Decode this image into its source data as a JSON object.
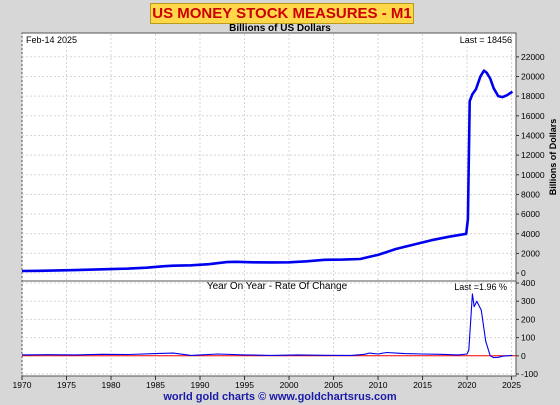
{
  "header": {
    "title": "US MONEY STOCK MEASURES - M1",
    "subtitle": "Billions of US Dollars"
  },
  "footer": {
    "credit": "world gold charts © www.goldchartsrus.com"
  },
  "chart_data": [
    {
      "type": "line",
      "panel": "main",
      "date_label": "Feb-14  2025",
      "last_label": "Last = 18456",
      "ylabel": "Billions of Dollars",
      "ylim": [
        -500,
        23000
      ],
      "yticks": [
        0,
        2000,
        4000,
        6000,
        8000,
        10000,
        12000,
        14000,
        16000,
        18000,
        20000,
        22000
      ],
      "grid": true,
      "color": "#0000ee",
      "x": [
        1970,
        1972,
        1974,
        1976,
        1978,
        1980,
        1982,
        1984,
        1986,
        1987,
        1989,
        1991,
        1993,
        1994,
        1996,
        1998,
        2000,
        2002,
        2004,
        2006,
        2008,
        2009,
        2010,
        2011,
        2012,
        2014,
        2016,
        2018,
        2019,
        2019.9,
        2020.1,
        2020.3,
        2020.6,
        2021,
        2021.5,
        2021.9,
        2022.2,
        2022.6,
        2023,
        2023.5,
        2024,
        2024.5,
        2025.1
      ],
      "values": [
        210,
        235,
        270,
        300,
        350,
        410,
        460,
        550,
        700,
        750,
        790,
        900,
        1120,
        1150,
        1100,
        1090,
        1100,
        1200,
        1350,
        1370,
        1430,
        1650,
        1850,
        2150,
        2450,
        2900,
        3350,
        3700,
        3850,
        4000,
        5500,
        17500,
        18200,
        18700,
        20000,
        20600,
        20400,
        19800,
        18800,
        18000,
        17900,
        18100,
        18456
      ]
    },
    {
      "type": "line",
      "panel": "rate",
      "title": "Year On Year - Rate Of Change",
      "last_label": "Last =1.96 %",
      "ylim": [
        -100,
        400
      ],
      "yticks": [
        -100,
        0,
        100,
        200,
        300,
        400
      ],
      "grid": true,
      "color": "#0000ee",
      "zero_line_color": "#ff0000",
      "x": [
        1970,
        1973,
        1976,
        1979,
        1982,
        1985,
        1987,
        1989,
        1992,
        1995,
        1998,
        2001,
        2004,
        2007,
        2008.5,
        2009,
        2010,
        2011,
        2012,
        2013,
        2015,
        2017,
        2019,
        2020,
        2020.2,
        2020.6,
        2020.8,
        2021.1,
        2021.6,
        2022.1,
        2022.6,
        2023,
        2023.5,
        2024,
        2025.1
      ],
      "values": [
        5,
        6,
        5,
        8,
        7,
        12,
        15,
        2,
        10,
        5,
        2,
        5,
        3,
        2,
        8,
        15,
        10,
        18,
        15,
        12,
        10,
        8,
        5,
        10,
        30,
        340,
        270,
        300,
        250,
        80,
        0,
        -10,
        -8,
        -2,
        1.96
      ]
    }
  ],
  "x_axis": {
    "ticks": [
      1970,
      1975,
      1980,
      1985,
      1990,
      1995,
      2000,
      2005,
      2010,
      2015,
      2020,
      2025
    ],
    "range": [
      1970,
      2025.5
    ]
  }
}
